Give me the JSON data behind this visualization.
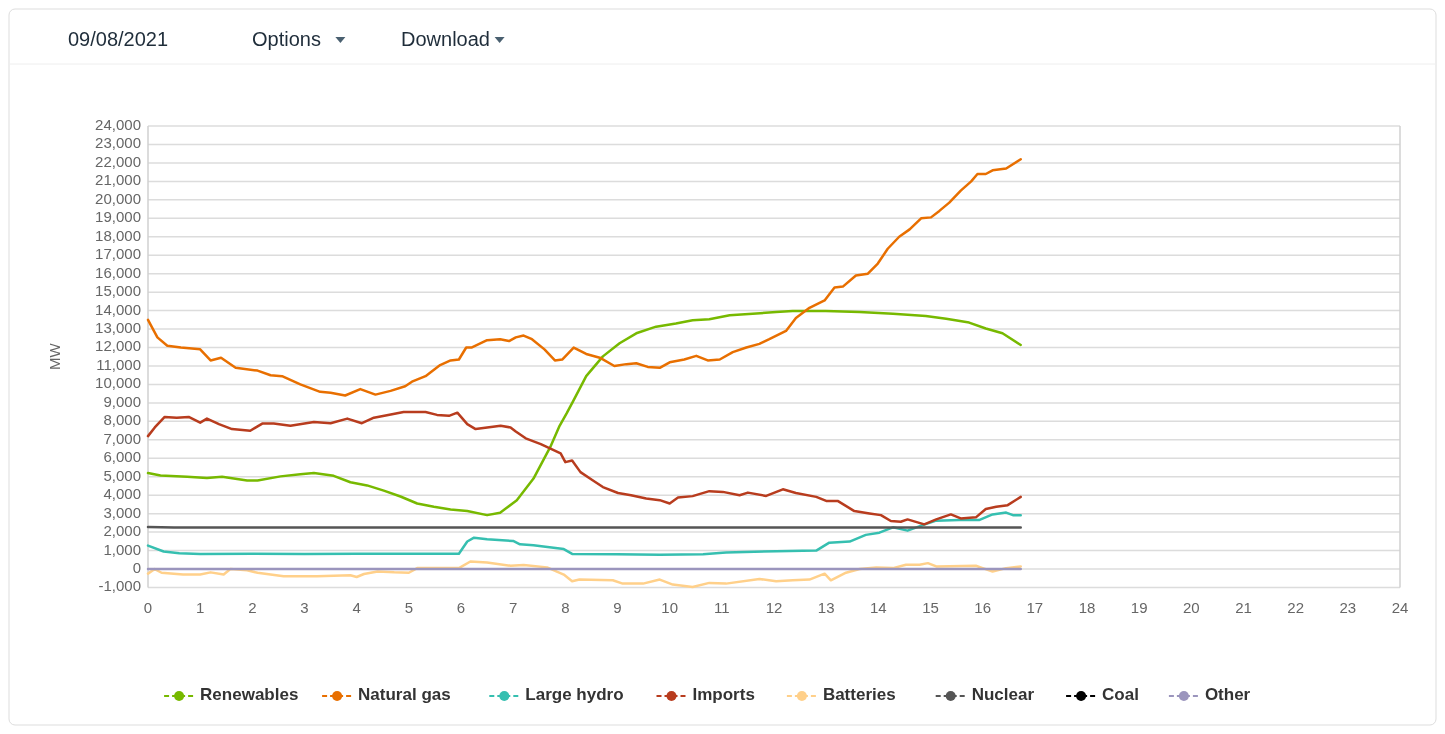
{
  "chart_data": {
    "type": "line",
    "ylabel": "MW",
    "annotations": [
      "09/08/2021",
      "Options",
      "Download"
    ],
    "xlim": [
      0,
      24
    ],
    "xticks": [
      0,
      1,
      2,
      3,
      4,
      5,
      6,
      7,
      8,
      9,
      10,
      11,
      12,
      13,
      14,
      15,
      16,
      17,
      18,
      19,
      20,
      21,
      22,
      23,
      24
    ],
    "ylim": [
      -1000,
      24000
    ],
    "yticks": [
      {
        "value": -1000,
        "label": "-1,000"
      },
      0,
      {
        "value": 1000,
        "label": "1,000"
      },
      {
        "value": 2000,
        "label": "2,000"
      },
      {
        "value": 3000,
        "label": "3,000"
      },
      {
        "value": 4000,
        "label": "4,000"
      },
      {
        "value": 5000,
        "label": "5,000"
      },
      {
        "value": 6000,
        "label": "6,000"
      },
      {
        "value": 7000,
        "label": "7,000"
      },
      {
        "value": 8000,
        "label": "8,000"
      },
      {
        "value": 9000,
        "label": "9,000"
      },
      {
        "value": 10000,
        "label": "10,000"
      },
      {
        "value": 11000,
        "label": "11,000"
      },
      {
        "value": 12000,
        "label": "12,000"
      },
      {
        "value": 13000,
        "label": "13,000"
      },
      {
        "value": 14000,
        "label": "14,000"
      },
      {
        "value": 15000,
        "label": "15,000"
      },
      {
        "value": 16000,
        "label": "16,000"
      },
      {
        "value": 17000,
        "label": "17,000"
      },
      {
        "value": 18000,
        "label": "18,000"
      },
      {
        "value": 19000,
        "label": "19,000"
      },
      {
        "value": 20000,
        "label": "20,000"
      },
      {
        "value": 21000,
        "label": "21,000"
      },
      {
        "value": 22000,
        "label": "22,000"
      },
      {
        "value": 23000,
        "label": "23,000"
      },
      {
        "value": 24000,
        "label": "24,000"
      }
    ],
    "grid": "y",
    "legend": "bottom",
    "series": [
      {
        "name": "Renewables",
        "color": "#77b900",
        "x": [
          0,
          0.24,
          0.75,
          1.13,
          1.42,
          1.9,
          2.1,
          2.54,
          2.92,
          3.18,
          3.56,
          3.88,
          4.2,
          4.52,
          4.84,
          5.16,
          5.48,
          5.8,
          6.12,
          6.5,
          6.75,
          7.07,
          7.39,
          7.71,
          7.89,
          8.03,
          8.15,
          8.4,
          8.72,
          9.04,
          9.36,
          9.74,
          10.12,
          10.44,
          10.76,
          11.15,
          11.59,
          12.04,
          12.36,
          12.99,
          13.64,
          14.28,
          14.91,
          15.3,
          15.74,
          16.06,
          16.38,
          16.73
        ],
        "values": [
          5200,
          5070,
          5000,
          4930,
          5000,
          4800,
          4800,
          5020,
          5130,
          5200,
          5050,
          4700,
          4530,
          4250,
          3930,
          3550,
          3370,
          3230,
          3140,
          2920,
          3050,
          3730,
          4900,
          6600,
          7760,
          8460,
          9100,
          10450,
          11520,
          12230,
          12770,
          13130,
          13300,
          13480,
          13530,
          13750,
          13830,
          13920,
          13980,
          13980,
          13920,
          13830,
          13710,
          13560,
          13350,
          13030,
          12770,
          12140
        ]
      },
      {
        "name": "Natural gas",
        "color": "#e86f00",
        "x": [
          0,
          0.18,
          0.37,
          0.63,
          1.0,
          1.2,
          1.4,
          1.68,
          2.1,
          2.35,
          2.57,
          2.92,
          3.3,
          3.5,
          3.78,
          4.07,
          4.36,
          4.65,
          4.93,
          5.06,
          5.32,
          5.6,
          5.8,
          5.96,
          6.1,
          6.2,
          6.5,
          6.75,
          6.92,
          7.05,
          7.2,
          7.36,
          7.6,
          7.8,
          7.94,
          8.16,
          8.4,
          8.66,
          8.94,
          9.17,
          9.36,
          9.58,
          9.81,
          10.0,
          10.28,
          10.51,
          10.73,
          10.96,
          11.21,
          11.47,
          11.72,
          11.91,
          12.23,
          12.42,
          12.68,
          12.97,
          13.16,
          13.32,
          13.57,
          13.8,
          13.99,
          14.18,
          14.4,
          14.6,
          14.82,
          15.01,
          15.17,
          15.36,
          15.58,
          15.78,
          15.9,
          16.06,
          16.19,
          16.45,
          16.73
        ],
        "values": [
          13500,
          12550,
          12100,
          12000,
          11900,
          11300,
          11450,
          10900,
          10750,
          10500,
          10450,
          10000,
          9600,
          9550,
          9400,
          9750,
          9450,
          9650,
          9900,
          10150,
          10450,
          11050,
          11300,
          11350,
          12000,
          12000,
          12400,
          12450,
          12350,
          12550,
          12650,
          12450,
          11900,
          11300,
          11350,
          12000,
          11650,
          11450,
          11000,
          11100,
          11150,
          10950,
          10900,
          11200,
          11350,
          11550,
          11300,
          11350,
          11750,
          12000,
          12200,
          12450,
          12900,
          13600,
          14150,
          14550,
          15250,
          15300,
          15900,
          16000,
          16550,
          17350,
          18000,
          18400,
          19000,
          19050,
          19400,
          19850,
          20500,
          21000,
          21400,
          21400,
          21600,
          21700,
          22200
        ]
      },
      {
        "name": "Large hydro",
        "color": "#36bfb0",
        "x": [
          0,
          0.3,
          0.6,
          1.0,
          2.0,
          3.0,
          4.0,
          5.0,
          5.96,
          6.12,
          6.25,
          6.5,
          7.0,
          7.13,
          7.39,
          7.58,
          7.97,
          8.13,
          8.98,
          9.81,
          10.64,
          11.08,
          12.04,
          12.81,
          13.06,
          13.45,
          13.76,
          14.02,
          14.28,
          14.56,
          14.85,
          15.11,
          15.55,
          15.93,
          16.19,
          16.45,
          16.58,
          16.73
        ],
        "values": [
          1270,
          950,
          860,
          820,
          830,
          820,
          830,
          830,
          830,
          1490,
          1700,
          1610,
          1520,
          1340,
          1290,
          1220,
          1080,
          820,
          800,
          770,
          800,
          900,
          970,
          1000,
          1430,
          1490,
          1850,
          1970,
          2260,
          2080,
          2380,
          2620,
          2650,
          2650,
          2960,
          3060,
          2920,
          2920
        ]
      },
      {
        "name": "Imports",
        "color": "#b83c1e",
        "x": [
          0,
          0.13,
          0.32,
          0.55,
          0.78,
          1.0,
          1.13,
          1.36,
          1.61,
          1.96,
          2.19,
          2.41,
          2.73,
          3.18,
          3.5,
          3.82,
          4.1,
          4.33,
          4.58,
          4.9,
          5.32,
          5.54,
          5.77,
          5.93,
          6.12,
          6.28,
          6.76,
          6.95,
          7.05,
          7.24,
          7.53,
          7.91,
          8.0,
          8.13,
          8.29,
          8.53,
          8.72,
          9.01,
          9.26,
          9.55,
          9.81,
          10.0,
          10.16,
          10.44,
          10.76,
          11.02,
          11.34,
          11.5,
          11.85,
          12.17,
          12.42,
          12.81,
          13.0,
          13.22,
          13.54,
          13.83,
          14.05,
          14.24,
          14.43,
          14.56,
          14.88,
          15.11,
          15.39,
          15.58,
          15.87,
          16.06,
          16.26,
          16.48,
          16.73
        ],
        "values": [
          7200,
          7670,
          8240,
          8200,
          8240,
          7930,
          8150,
          7850,
          7580,
          7490,
          7880,
          7880,
          7760,
          7970,
          7900,
          8150,
          7900,
          8200,
          8330,
          8510,
          8510,
          8350,
          8300,
          8470,
          7850,
          7580,
          7760,
          7670,
          7450,
          7080,
          6770,
          6270,
          5790,
          5880,
          5250,
          4800,
          4440,
          4120,
          4000,
          3820,
          3730,
          3550,
          3870,
          3950,
          4220,
          4180,
          4000,
          4140,
          3960,
          4320,
          4120,
          3910,
          3690,
          3690,
          3140,
          3010,
          2920,
          2600,
          2560,
          2690,
          2420,
          2690,
          2960,
          2740,
          2800,
          3250,
          3370,
          3460,
          3910
        ]
      },
      {
        "name": "Batteries",
        "color": "#ffd08a",
        "x": [
          0,
          0.13,
          0.26,
          0.67,
          1.0,
          1.2,
          1.45,
          1.58,
          1.9,
          2.1,
          2.6,
          3.24,
          3.88,
          4.0,
          4.14,
          4.4,
          4.72,
          5.0,
          5.16,
          5.96,
          6.18,
          6.5,
          6.95,
          7.2,
          7.65,
          7.97,
          8.13,
          8.27,
          8.91,
          9.1,
          9.49,
          9.81,
          10.06,
          10.44,
          10.76,
          11.08,
          11.72,
          12.04,
          12.36,
          12.68,
          12.97,
          13.09,
          13.38,
          13.64,
          13.96,
          14.28,
          14.53,
          14.79,
          14.95,
          15.11,
          15.87,
          16.0,
          16.19,
          16.45,
          16.73
        ],
        "values": [
          -250,
          0,
          -200,
          -300,
          -300,
          -180,
          -300,
          0,
          -70,
          -200,
          -390,
          -390,
          -340,
          -430,
          -270,
          -130,
          -180,
          -200,
          50,
          50,
          410,
          360,
          180,
          220,
          90,
          -300,
          -660,
          -570,
          -610,
          -790,
          -790,
          -570,
          -840,
          -970,
          -750,
          -790,
          -540,
          -660,
          -610,
          -570,
          -250,
          -610,
          -200,
          0,
          90,
          50,
          230,
          230,
          320,
          140,
          180,
          50,
          -130,
          50,
          140
        ]
      },
      {
        "name": "Nuclear",
        "color": "#555555",
        "x": [
          0,
          0.5,
          16.73
        ],
        "values": [
          2280,
          2250,
          2250
        ]
      },
      {
        "name": "Coal",
        "color": "#000000"
      },
      {
        "name": "Other",
        "color": "#9b95bd",
        "x": [
          0,
          16.73
        ],
        "values": [
          0,
          0
        ]
      }
    ]
  }
}
